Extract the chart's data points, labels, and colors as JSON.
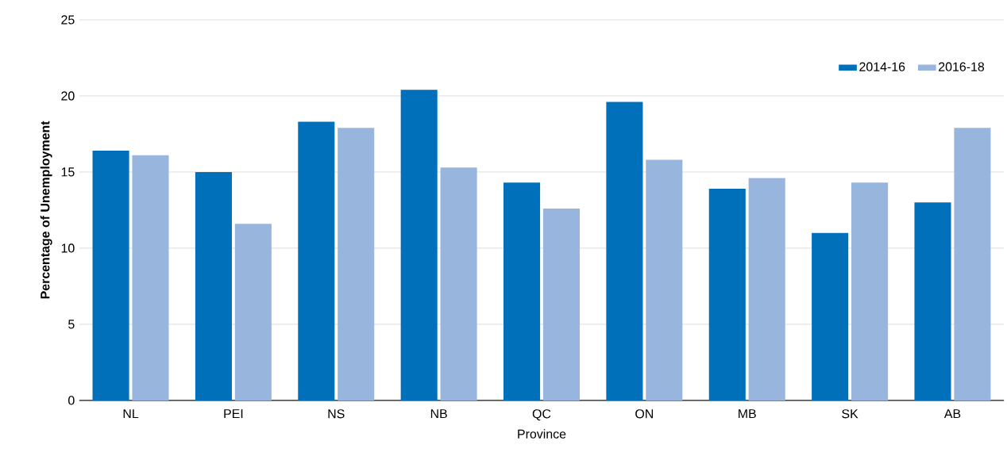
{
  "chart_data": {
    "type": "bar",
    "xlabel": "Province",
    "ylabel": "Percentage of Unemployment",
    "categories": [
      "NL",
      "PEI",
      "NS",
      "NB",
      "QC",
      "ON",
      "MB",
      "SK",
      "AB"
    ],
    "series": [
      {
        "name": "2014-16",
        "color": "#0070bb",
        "values": [
          16.4,
          15.0,
          18.3,
          20.4,
          14.3,
          19.6,
          13.9,
          11.0,
          13.0
        ]
      },
      {
        "name": "2016-18",
        "color": "#98b5de",
        "values": [
          16.1,
          11.6,
          17.9,
          15.3,
          12.6,
          15.8,
          14.6,
          14.3,
          17.9
        ]
      }
    ],
    "ylim": [
      0,
      25
    ],
    "yticks": [
      0,
      5,
      10,
      15,
      20,
      25
    ],
    "grid": "y",
    "legend": "top right"
  }
}
